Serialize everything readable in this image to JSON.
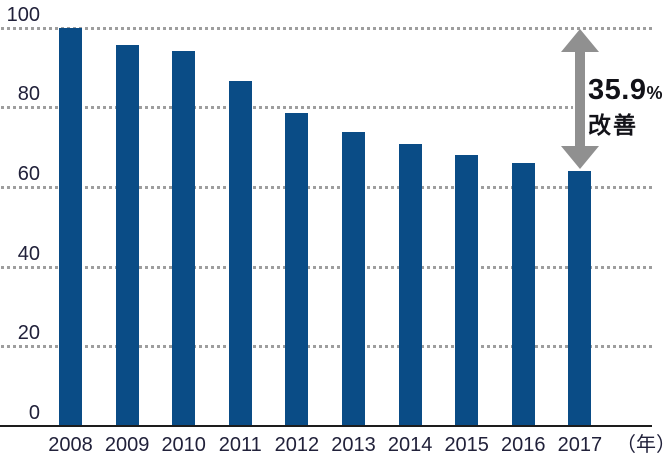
{
  "chart_data": {
    "type": "bar",
    "title": "",
    "categories": [
      "2008",
      "2009",
      "2010",
      "2011",
      "2012",
      "2013",
      "2014",
      "2015",
      "2016",
      "2017"
    ],
    "values": [
      100,
      95.5,
      94,
      86.5,
      78.5,
      73.8,
      70.7,
      68.1,
      66.1,
      64.1
    ],
    "xlabel": "（年）",
    "ylabel": "",
    "ylim": [
      0,
      100
    ],
    "yticks": [
      0,
      20,
      40,
      60,
      80,
      100
    ],
    "grid": "horizontal-dotted",
    "legend": "none",
    "annotation": {
      "value": "35.9",
      "unit": "%",
      "label": "改善",
      "arrow_from_value": 100,
      "arrow_to_value": 64.1
    },
    "colors": {
      "bar": "#0a4c86",
      "arrow": "#909090",
      "grid": "#9e9e9e",
      "axis": "#1d1d1d",
      "tick_label": "#21213a",
      "annotation_text": "#121218",
      "background": "#ffffff"
    }
  }
}
